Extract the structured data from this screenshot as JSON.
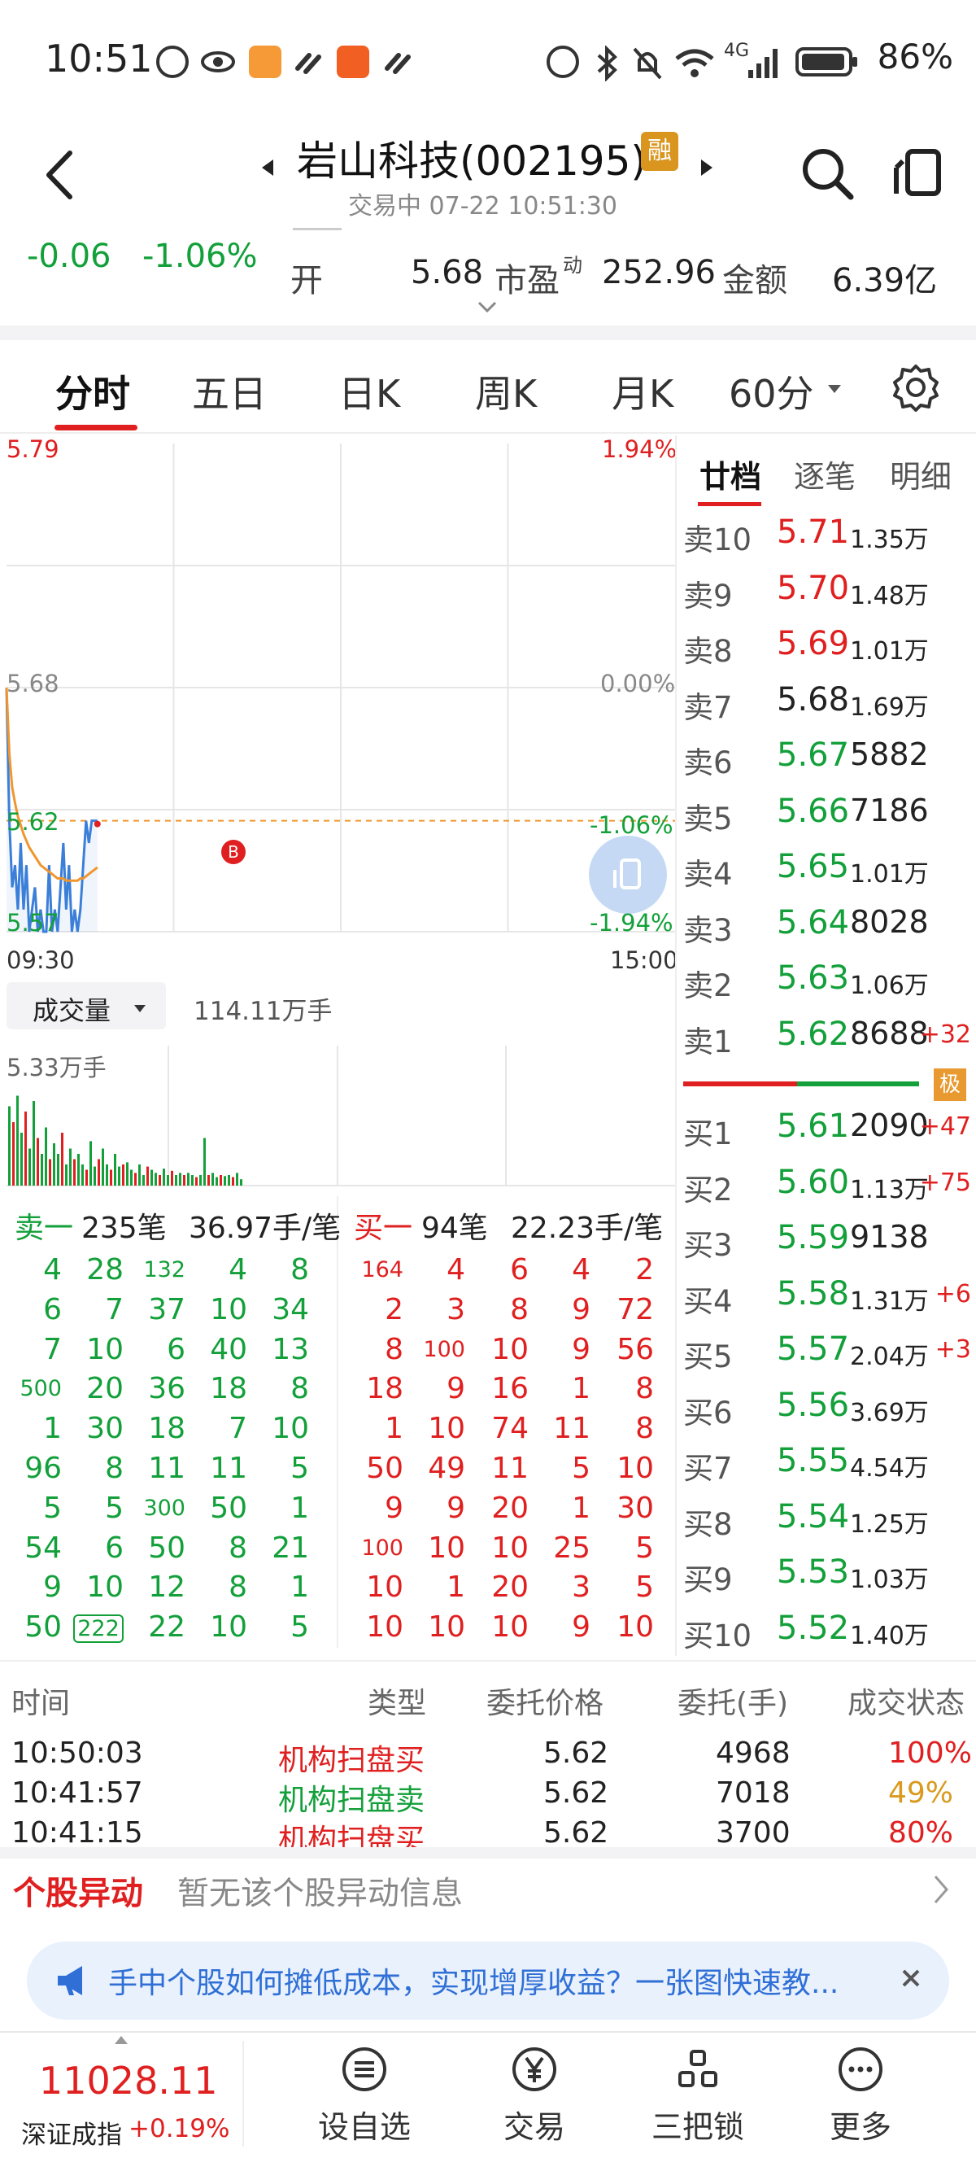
{
  "status_bar": {
    "time": "10:51",
    "network": "4G",
    "battery": "86%"
  },
  "header": {
    "stock_name": "岩山科技(002195)",
    "margin_badge": "融",
    "trade_status": "交易中 07-22 10:51:30"
  },
  "quote": {
    "change": "-0.06",
    "change_pct": "-1.06%",
    "open_label": "开",
    "open_value": "5.68",
    "pe_label": "市盈",
    "pe_sup": "动",
    "pe_value": "252.96",
    "amount_label": "金额",
    "amount_value": "6.39亿"
  },
  "tabs": [
    "分时",
    "五日",
    "日K",
    "周K",
    "月K",
    "60分"
  ],
  "chart": {
    "y_top": "5.79",
    "y_mid": "5.68",
    "y_cur": "5.62",
    "y_bot": "5.57",
    "pct_top": "1.94%",
    "pct_mid": "0.00%",
    "pct_cur": "-1.06%",
    "pct_bot": "-1.94%",
    "x_start": "09:30",
    "x_end": "15:00",
    "marker": "B"
  },
  "chart_data": {
    "type": "line",
    "title": "",
    "xlabel": "",
    "ylabel": "",
    "ylim": [
      5.57,
      5.79
    ],
    "prev_close": 5.68,
    "current": 5.62,
    "series": [
      {
        "name": "",
        "values": [
          5.68,
          5.62,
          5.59,
          5.6,
          5.58,
          5.61,
          5.58,
          5.6,
          5.57,
          5.58,
          5.59,
          5.57,
          5.58,
          5.57,
          5.57,
          5.6,
          5.57,
          5.58,
          5.57,
          5.59,
          5.61,
          5.58,
          5.6,
          5.57,
          5.58,
          5.57,
          5.58,
          5.6,
          5.62,
          5.61,
          5.62,
          5.62,
          5.62
        ]
      },
      {
        "name": "",
        "values": [
          5.68,
          5.65,
          5.635,
          5.628,
          5.622,
          5.618,
          5.614,
          5.611,
          5.608,
          5.606,
          5.604,
          5.602,
          5.6,
          5.599,
          5.598,
          5.597,
          5.596,
          5.595,
          5.594,
          5.594,
          5.594,
          5.593,
          5.593,
          5.593,
          5.593,
          5.593,
          5.594,
          5.594,
          5.595,
          5.596,
          5.597,
          5.598,
          5.599
        ]
      }
    ]
  },
  "volume": {
    "selector": "成交量",
    "total": "114.11万手",
    "max_label": "5.33万手"
  },
  "book": {
    "tabs": [
      "廿档",
      "逐笔",
      "明细"
    ],
    "sells": [
      {
        "label": "卖10",
        "price": "5.71",
        "vol": "1.35万",
        "chg": ""
      },
      {
        "label": "卖9",
        "price": "5.70",
        "vol": "1.48万",
        "chg": ""
      },
      {
        "label": "卖8",
        "price": "5.69",
        "vol": "1.01万",
        "chg": ""
      },
      {
        "label": "卖7",
        "price": "5.68",
        "vol": "1.69万",
        "chg": ""
      },
      {
        "label": "卖6",
        "price": "5.67",
        "vol": "5882",
        "chg": ""
      },
      {
        "label": "卖5",
        "price": "5.66",
        "vol": "7186",
        "chg": ""
      },
      {
        "label": "卖4",
        "price": "5.65",
        "vol": "1.01万",
        "chg": ""
      },
      {
        "label": "卖3",
        "price": "5.64",
        "vol": "8028",
        "chg": ""
      },
      {
        "label": "卖2",
        "price": "5.63",
        "vol": "1.06万",
        "chg": ""
      },
      {
        "label": "卖1",
        "price": "5.62",
        "vol": "8688",
        "chg": "+32"
      }
    ],
    "buys": [
      {
        "label": "买1",
        "price": "5.61",
        "vol": "2090",
        "chg": "+47"
      },
      {
        "label": "买2",
        "price": "5.60",
        "vol": "1.13万",
        "chg": "+75"
      },
      {
        "label": "买3",
        "price": "5.59",
        "vol": "9138",
        "chg": ""
      },
      {
        "label": "买4",
        "price": "5.58",
        "vol": "1.31万",
        "chg": "+6"
      },
      {
        "label": "买5",
        "price": "5.57",
        "vol": "2.04万",
        "chg": "+3"
      },
      {
        "label": "买6",
        "price": "5.56",
        "vol": "3.69万",
        "chg": ""
      },
      {
        "label": "买7",
        "price": "5.55",
        "vol": "4.54万",
        "chg": ""
      },
      {
        "label": "买8",
        "price": "5.54",
        "vol": "1.25万",
        "chg": ""
      },
      {
        "label": "买9",
        "price": "5.53",
        "vol": "1.03万",
        "chg": ""
      },
      {
        "label": "买10",
        "price": "5.52",
        "vol": "1.40万",
        "chg": ""
      }
    ],
    "badge": "极"
  },
  "queue": {
    "sell_label": "卖一",
    "sell_count": "235笔",
    "sell_avg": "36.97手/笔",
    "buy_label": "买一",
    "buy_count": "94笔",
    "buy_avg": "22.23手/笔",
    "sell_rows": [
      [
        "4",
        "28",
        "132",
        "4",
        "8"
      ],
      [
        "6",
        "7",
        "37",
        "10",
        "34"
      ],
      [
        "7",
        "10",
        "6",
        "40",
        "13"
      ],
      [
        "500",
        "20",
        "36",
        "18",
        "8"
      ],
      [
        "1",
        "30",
        "18",
        "7",
        "10"
      ],
      [
        "96",
        "8",
        "11",
        "11",
        "5"
      ],
      [
        "5",
        "5",
        "300",
        "50",
        "1"
      ],
      [
        "54",
        "6",
        "50",
        "8",
        "21"
      ],
      [
        "9",
        "10",
        "12",
        "8",
        "1"
      ],
      [
        "50",
        "222",
        "22",
        "10",
        "5"
      ]
    ],
    "buy_rows": [
      [
        "164",
        "4",
        "6",
        "4",
        "2"
      ],
      [
        "2",
        "3",
        "8",
        "9",
        "72"
      ],
      [
        "8",
        "100",
        "10",
        "9",
        "56"
      ],
      [
        "18",
        "9",
        "16",
        "1",
        "8"
      ],
      [
        "1",
        "10",
        "74",
        "11",
        "8"
      ],
      [
        "50",
        "49",
        "11",
        "5",
        "10"
      ],
      [
        "9",
        "9",
        "20",
        "1",
        "30"
      ],
      [
        "100",
        "10",
        "10",
        "25",
        "5"
      ],
      [
        "10",
        "1",
        "20",
        "3",
        "5"
      ],
      [
        "10",
        "10",
        "10",
        "9",
        "10"
      ]
    ]
  },
  "trades": {
    "headers": [
      "时间",
      "类型",
      "委托价格",
      "委托(手)",
      "成交状态"
    ],
    "rows": [
      {
        "time": "10:50:03",
        "type": "机构扫盘买",
        "price": "5.62",
        "qty": "4968",
        "status": "100%",
        "side": "buy"
      },
      {
        "time": "10:41:57",
        "type": "机构扫盘卖",
        "price": "5.62",
        "qty": "7018",
        "status": "49%",
        "side": "sell"
      },
      {
        "time": "10:41:15",
        "type": "机构扫盘买",
        "price": "5.62",
        "qty": "3700",
        "status": "80%",
        "side": "buy"
      }
    ]
  },
  "anomaly": {
    "title": "个股异动",
    "text": "暂无该个股异动信息"
  },
  "banner": {
    "text": "手中个股如何摊低成本，实现增厚收益？一张图快速教..."
  },
  "bottom_nav": {
    "index_value": "11028.11",
    "index_name": "深证成指",
    "index_change": "+0.19%",
    "items": [
      "设自选",
      "交易",
      "三把锁",
      "更多"
    ]
  },
  "colors": {
    "up": "#e02020",
    "down": "#13a03a",
    "price_line": "#3b7fd8",
    "avg_line": "#f0962e",
    "margin_badge": "#d9951e"
  }
}
